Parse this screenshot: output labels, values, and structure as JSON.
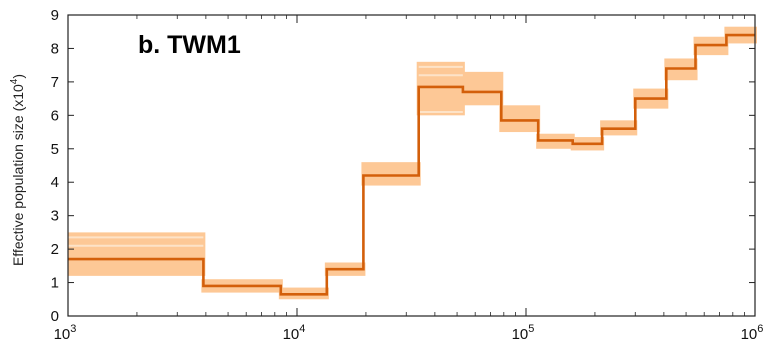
{
  "chart_data": {
    "type": "line",
    "step": true,
    "title": "b. TWM1",
    "xlabel": "",
    "ylabel": "Effective population size (x10",
    "ylabel_sup": "4",
    "ylabel_close": ")",
    "xscale": "log",
    "xlim": [
      1000,
      1000000
    ],
    "ylim": [
      0,
      9
    ],
    "xticks": [
      {
        "base": "10",
        "exp": "3"
      },
      {
        "base": "10",
        "exp": "4"
      },
      {
        "base": "10",
        "exp": "5"
      },
      {
        "base": "10",
        "exp": "6"
      }
    ],
    "yticks": [
      "0",
      "1",
      "2",
      "3",
      "4",
      "5",
      "6",
      "7",
      "8",
      "9"
    ],
    "grid": false,
    "colors": {
      "main": "#d35f0a",
      "bootstrap": "#fdc896"
    },
    "series": [
      {
        "role": "main",
        "x": [
          1000,
          3900,
          3900,
          8500,
          8500,
          13500,
          13500,
          19500,
          19500,
          34000,
          34000,
          53000,
          53000,
          78000,
          78000,
          113000,
          113000,
          160000,
          160000,
          215000,
          215000,
          300000,
          300000,
          410000,
          410000,
          550000,
          550000,
          750000,
          750000,
          1000000
        ],
        "y": [
          1.7,
          1.7,
          0.9,
          0.9,
          0.65,
          0.65,
          1.4,
          1.4,
          4.2,
          4.2,
          6.85,
          6.85,
          6.7,
          6.7,
          5.85,
          5.85,
          5.25,
          5.25,
          5.15,
          5.15,
          5.6,
          5.6,
          6.5,
          6.5,
          7.4,
          7.4,
          8.1,
          8.1,
          8.4,
          8.4
        ]
      }
    ],
    "bootstrap_band": [
      {
        "x0": 1000,
        "x1": 3900,
        "lo": 1.2,
        "hi": 2.5
      },
      {
        "x0": 3900,
        "x1": 8500,
        "lo": 0.7,
        "hi": 1.1
      },
      {
        "x0": 8500,
        "x1": 13500,
        "lo": 0.5,
        "hi": 0.85
      },
      {
        "x0": 13500,
        "x1": 19500,
        "lo": 1.2,
        "hi": 1.6
      },
      {
        "x0": 19500,
        "x1": 34000,
        "lo": 3.9,
        "hi": 4.6
      },
      {
        "x0": 34000,
        "x1": 53000,
        "lo": 6.0,
        "hi": 7.6
      },
      {
        "x0": 53000,
        "x1": 78000,
        "lo": 6.3,
        "hi": 7.3
      },
      {
        "x0": 78000,
        "x1": 113000,
        "lo": 5.5,
        "hi": 6.3
      },
      {
        "x0": 113000,
        "x1": 160000,
        "lo": 5.0,
        "hi": 5.45
      },
      {
        "x0": 160000,
        "x1": 215000,
        "lo": 4.95,
        "hi": 5.35
      },
      {
        "x0": 215000,
        "x1": 300000,
        "lo": 5.4,
        "hi": 5.85
      },
      {
        "x0": 300000,
        "x1": 410000,
        "lo": 6.2,
        "hi": 6.8
      },
      {
        "x0": 410000,
        "x1": 550000,
        "lo": 7.05,
        "hi": 7.7
      },
      {
        "x0": 550000,
        "x1": 750000,
        "lo": 7.8,
        "hi": 8.35
      },
      {
        "x0": 750000,
        "x1": 1000000,
        "lo": 8.15,
        "hi": 8.65
      }
    ],
    "bootstrap_highlights": [
      {
        "x0": 1000,
        "x1": 3900,
        "y": 2.35
      },
      {
        "x0": 1000,
        "x1": 3900,
        "y": 2.1
      },
      {
        "x0": 34000,
        "x1": 53000,
        "y": 7.45
      },
      {
        "x0": 34000,
        "x1": 53000,
        "y": 7.2
      },
      {
        "x0": 34000,
        "x1": 53000,
        "y": 6.1
      }
    ]
  }
}
